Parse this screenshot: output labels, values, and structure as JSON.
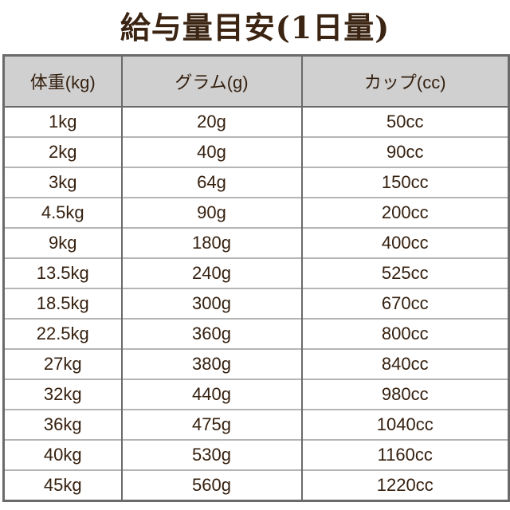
{
  "title": "給与量目安(1日量)",
  "table": {
    "headers": [
      "体重(kg)",
      "グラム(g)",
      "カップ(cc)"
    ],
    "rows": [
      [
        "1kg",
        "20g",
        "50cc"
      ],
      [
        "2kg",
        "40g",
        "90cc"
      ],
      [
        "3kg",
        "64g",
        "150cc"
      ],
      [
        "4.5kg",
        "90g",
        "200cc"
      ],
      [
        "9kg",
        "180g",
        "400cc"
      ],
      [
        "13.5kg",
        "240g",
        "525cc"
      ],
      [
        "18.5kg",
        "300g",
        "670cc"
      ],
      [
        "22.5kg",
        "360g",
        "800cc"
      ],
      [
        "27kg",
        "380g",
        "840cc"
      ],
      [
        "32kg",
        "440g",
        "980cc"
      ],
      [
        "36kg",
        "475g",
        "1040cc"
      ],
      [
        "40kg",
        "530g",
        "1160cc"
      ],
      [
        "45kg",
        "560g",
        "1220cc"
      ]
    ]
  },
  "colors": {
    "text": "#35200f",
    "header_bg": "#d0d0d0",
    "border": "#6a6a6a"
  }
}
